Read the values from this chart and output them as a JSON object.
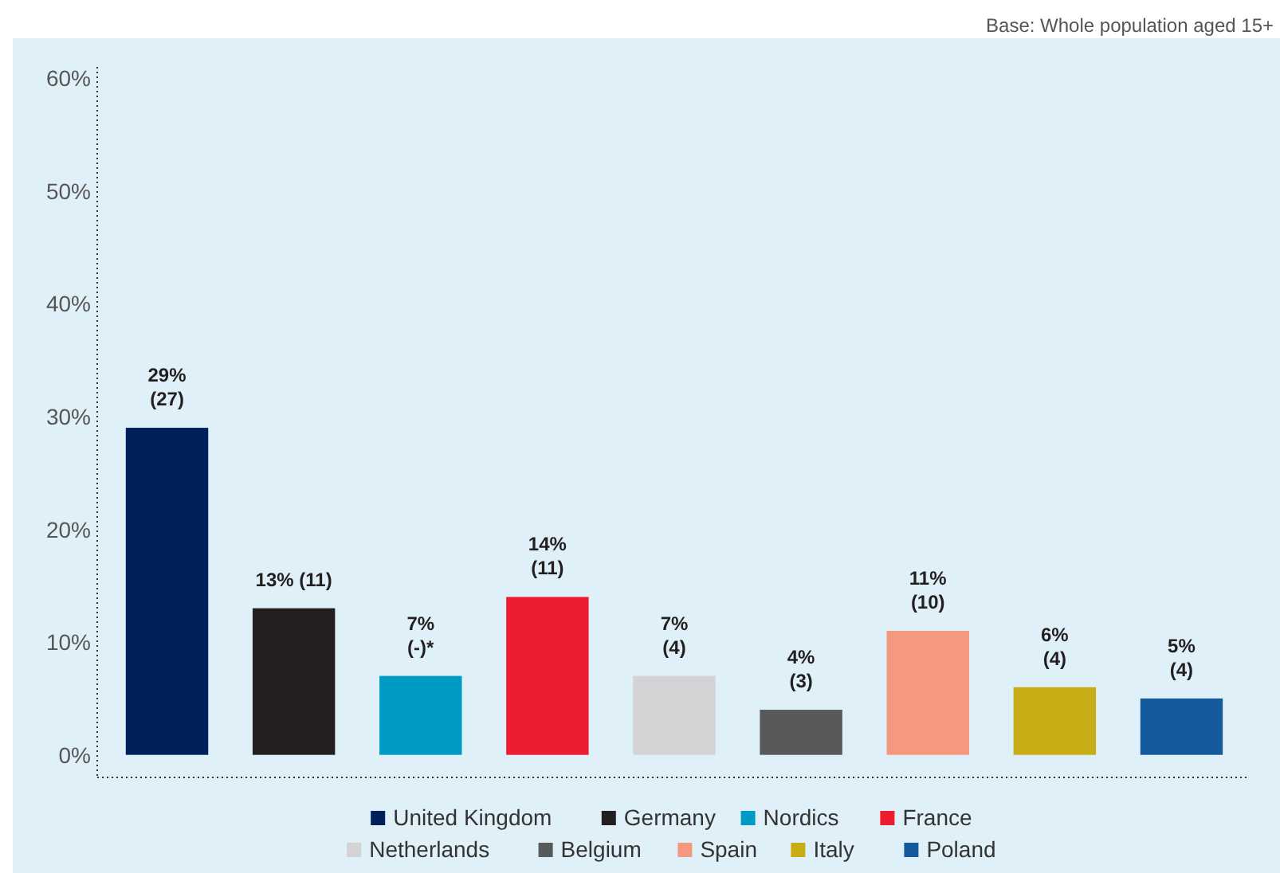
{
  "chart_data": {
    "type": "bar",
    "annotations": [
      "Base: Whole population aged 15+"
    ],
    "categories": [
      null,
      null,
      null,
      null,
      null,
      null,
      null,
      null,
      null
    ],
    "series": [
      {
        "name": "United Kingdom",
        "color": "#00205b",
        "values": [
          29,
          null,
          null,
          null,
          null,
          null,
          null,
          null,
          null
        ],
        "value_labels": [
          "29%\n(27)",
          null,
          null,
          null,
          null,
          null,
          null,
          null,
          null
        ]
      },
      {
        "name": "Germany",
        "color": "#231f20",
        "values": [
          null,
          13,
          null,
          null,
          null,
          null,
          null,
          null,
          null
        ],
        "value_labels": [
          null,
          "13% (11)",
          null,
          null,
          null,
          null,
          null,
          null,
          null
        ]
      },
      {
        "name": "Nordics",
        "color": "#009bc4",
        "values": [
          null,
          null,
          7,
          null,
          null,
          null,
          null,
          null,
          null
        ],
        "value_labels": [
          null,
          null,
          "7%\n(-)*",
          null,
          null,
          null,
          null,
          null,
          null
        ]
      },
      {
        "name": "France",
        "color": "#ed1c2e",
        "values": [
          null,
          null,
          null,
          14,
          null,
          null,
          null,
          null,
          null
        ],
        "value_labels": [
          null,
          null,
          null,
          "14%\n(11)",
          null,
          null,
          null,
          null,
          null
        ]
      },
      {
        "name": "Netherlands",
        "color": "#d3d3d5",
        "values": [
          null,
          null,
          null,
          null,
          7,
          null,
          null,
          null,
          null
        ],
        "value_labels": [
          null,
          null,
          null,
          null,
          "7%\n(4)",
          null,
          null,
          null,
          null
        ]
      },
      {
        "name": "Belgium",
        "color": "#58595b",
        "values": [
          null,
          null,
          null,
          null,
          null,
          4,
          null,
          null,
          null
        ],
        "value_labels": [
          null,
          null,
          null,
          null,
          null,
          "4%\n(3)",
          null,
          null,
          null
        ]
      },
      {
        "name": "Spain",
        "color": "#f4987f",
        "values": [
          null,
          null,
          null,
          null,
          null,
          null,
          11,
          null,
          null
        ],
        "value_labels": [
          null,
          null,
          null,
          null,
          null,
          null,
          "11%\n(10)",
          null,
          null
        ]
      },
      {
        "name": "Italy",
        "color": "#c9ad17",
        "values": [
          null,
          null,
          null,
          null,
          null,
          null,
          null,
          6,
          null
        ],
        "value_labels": [
          null,
          null,
          null,
          null,
          null,
          null,
          null,
          "6%\n(4)",
          null
        ]
      },
      {
        "name": "Poland",
        "color": "#155a9c",
        "values": [
          null,
          null,
          null,
          null,
          null,
          null,
          null,
          null,
          5
        ],
        "value_labels": [
          null,
          null,
          null,
          null,
          null,
          null,
          null,
          null,
          "5%\n(4)"
        ]
      }
    ],
    "ylim": [
      -2,
      61
    ],
    "yticks": [
      {
        "value": 0,
        "label": "0%"
      },
      {
        "value": 10,
        "label": "10%"
      },
      {
        "value": 20,
        "label": "20%"
      },
      {
        "value": 30,
        "label": "30%"
      },
      {
        "value": 40,
        "label": "40%"
      },
      {
        "value": 50,
        "label": "50%"
      },
      {
        "value": 60,
        "label": "60%"
      }
    ],
    "grid": false,
    "legend": "bottom"
  }
}
